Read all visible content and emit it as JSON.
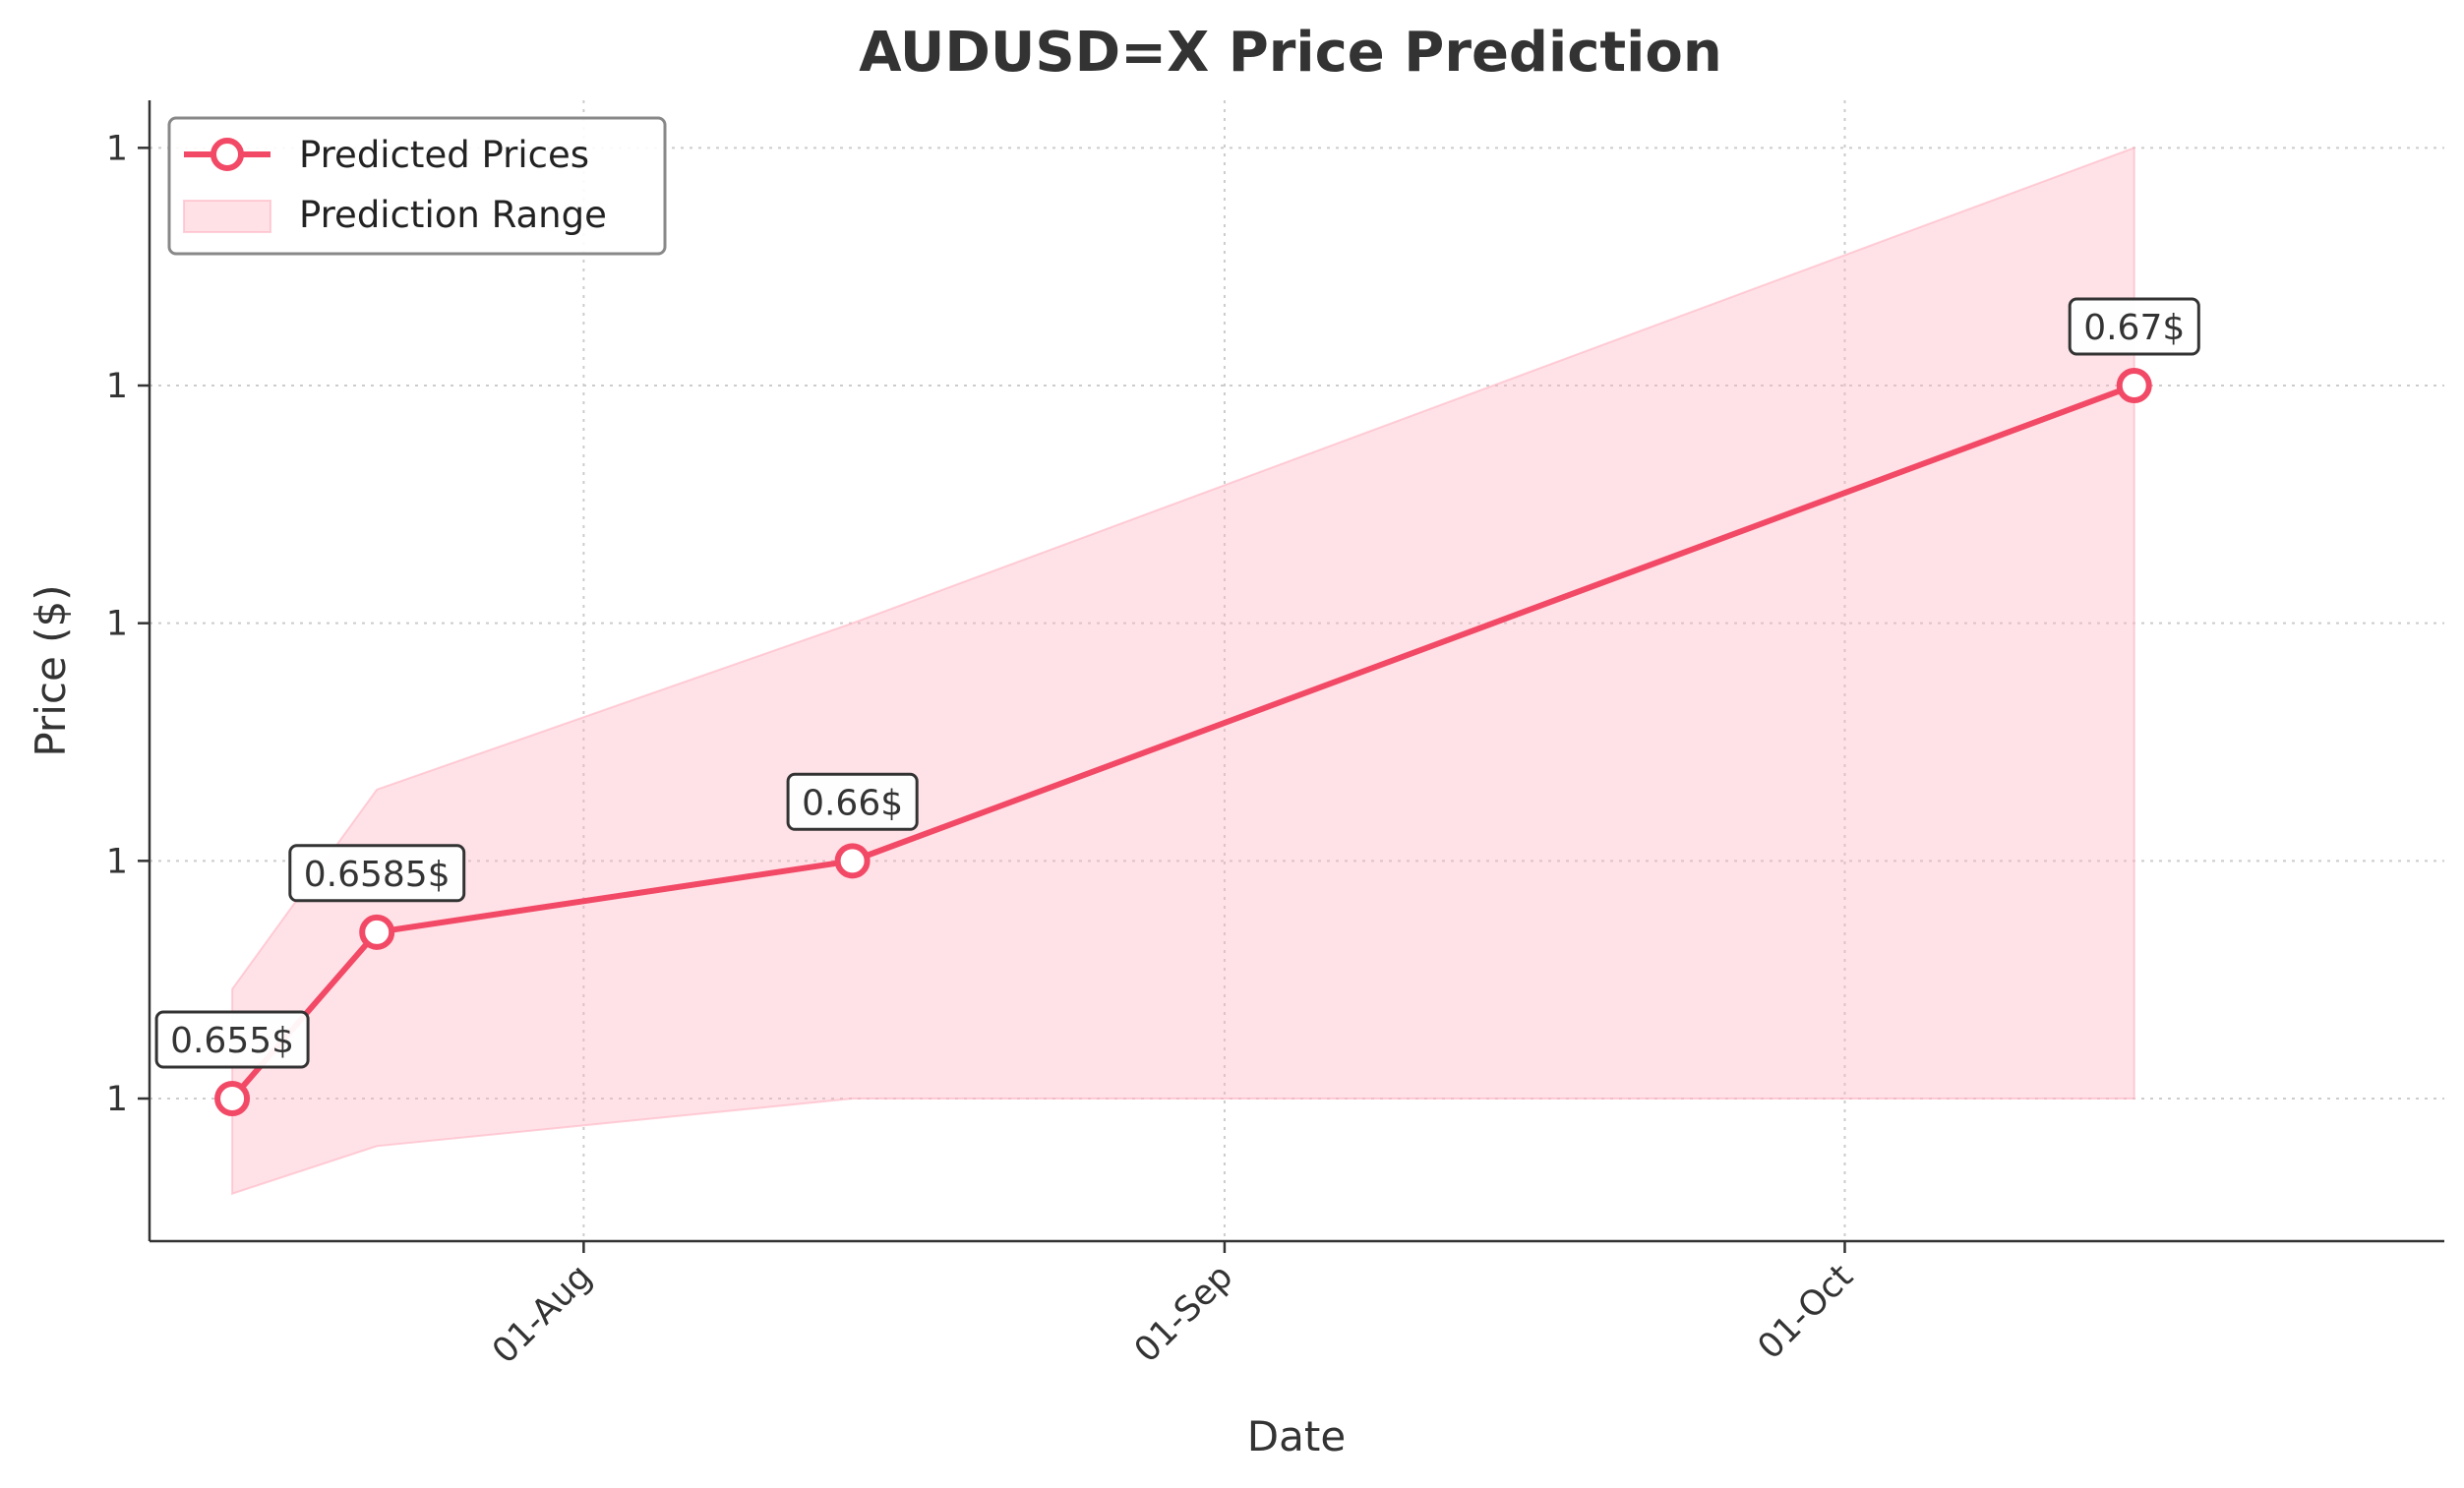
{
  "chart_data": {
    "type": "line",
    "title": "AUDUSD=X Price Prediction",
    "xlabel": "Date",
    "ylabel": "Price ($)",
    "x_ticks": [
      {
        "label": "01-Aug",
        "date": "2024-08-01"
      },
      {
        "label": "01-Sep",
        "date": "2024-09-01"
      },
      {
        "label": "01-Oct",
        "date": "2024-10-01"
      }
    ],
    "y_ticks": [
      {
        "label": "1",
        "value": 0.655
      },
      {
        "label": "1",
        "value": 0.66
      },
      {
        "label": "1",
        "value": 0.665
      },
      {
        "label": "1",
        "value": 0.67
      },
      {
        "label": "1",
        "value": 0.675
      }
    ],
    "xlim": [
      "2024-07-11",
      "2024-10-30"
    ],
    "ylim": [
      0.652,
      0.676
    ],
    "grid": true,
    "legend_position": "top-left",
    "colors": {
      "line": "#f24966",
      "band": "#ffb3c1"
    },
    "series": [
      {
        "name": "Predicted Prices",
        "points": [
          {
            "date": "2024-07-15",
            "value": 0.655,
            "label": "0.655$"
          },
          {
            "date": "2024-07-22",
            "value": 0.6585,
            "label": "0.6585$"
          },
          {
            "date": "2024-08-14",
            "value": 0.66,
            "label": "0.66$"
          },
          {
            "date": "2024-10-15",
            "value": 0.67,
            "label": "0.67$"
          }
        ]
      }
    ],
    "range": {
      "name": "Prediction Range",
      "points": [
        {
          "date": "2024-07-15",
          "low": 0.653,
          "high": 0.6573
        },
        {
          "date": "2024-07-22",
          "low": 0.654,
          "high": 0.6615
        },
        {
          "date": "2024-08-14",
          "low": 0.655,
          "high": 0.665
        },
        {
          "date": "2024-10-15",
          "low": 0.655,
          "high": 0.675
        }
      ]
    }
  }
}
